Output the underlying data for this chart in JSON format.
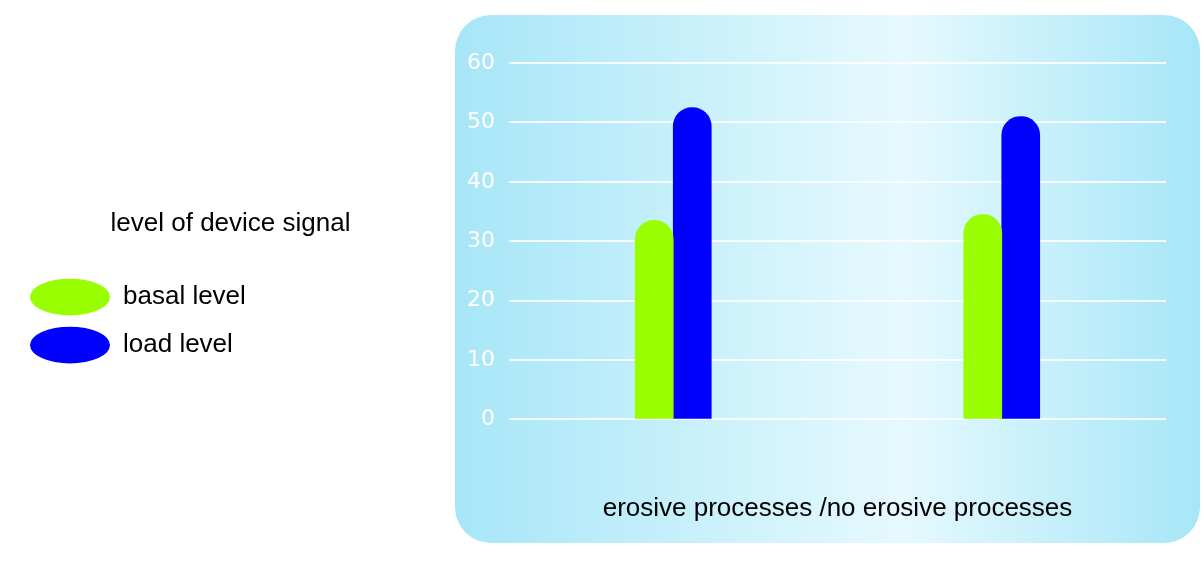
{
  "chart_data": {
    "type": "bar",
    "xlabel": "erosive processes /no erosive processes",
    "legend_title": "level of device signal",
    "legend": "left",
    "grid": "y",
    "categories": [
      null,
      null
    ],
    "series": [
      {
        "name": "basal level",
        "color": "#99ff00",
        "values": [
          33.5,
          34.5
        ]
      },
      {
        "name": "load level",
        "color": "#0000ff",
        "values": [
          52.5,
          51
        ]
      }
    ],
    "ylim": [
      0,
      60
    ],
    "yticks": [
      0,
      10,
      20,
      30,
      40,
      50,
      60
    ]
  }
}
